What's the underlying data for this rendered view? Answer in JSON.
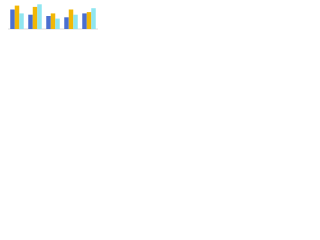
{
  "chart_data": {
    "type": "bar",
    "categories": [
      null,
      null,
      null,
      null,
      null
    ],
    "series": [
      {
        "color": "#4a6fd0",
        "values": [
          75,
          55,
          50,
          45,
          60
        ]
      },
      {
        "color": "#f2b705",
        "values": [
          90,
          85,
          60,
          75,
          65
        ]
      },
      {
        "color": "#8fe6f0",
        "values": [
          60,
          95,
          40,
          55,
          80
        ]
      }
    ],
    "ylim": [
      0,
      100
    ]
  }
}
